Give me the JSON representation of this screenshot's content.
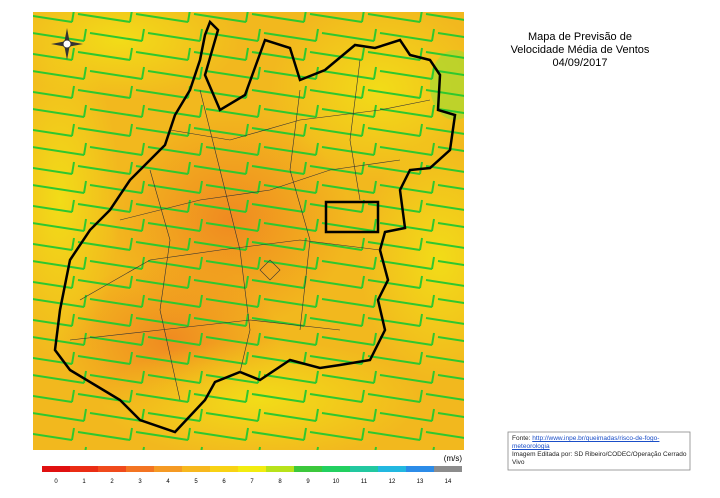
{
  "title": [
    "Mapa de Previsão de",
    "Velocidade Média de Ventos",
    "04/09/2017"
  ],
  "legend": {
    "unit": "(m/s)",
    "labels": [
      0,
      1,
      2,
      3,
      4,
      5,
      6,
      7,
      8,
      9,
      10,
      11,
      12,
      13,
      14
    ],
    "colors": [
      "#e01010",
      "#ea2c14",
      "#f04a1c",
      "#f37422",
      "#f59a24",
      "#f7b81e",
      "#f8d214",
      "#f2ec10",
      "#b8e21a",
      "#3cc83c",
      "#22d060",
      "#22c8a0",
      "#22b8e0",
      "#2c8ce8",
      "#8c8c8c"
    ]
  },
  "source": {
    "label": "Fonte:",
    "link": "http://www.inpe.br/queimadas/risco-de-fogo-meteorologia",
    "edited": "Imagem Editada por: SD Ribeiro/CODEC/Operação Cerrado Vivo"
  }
}
